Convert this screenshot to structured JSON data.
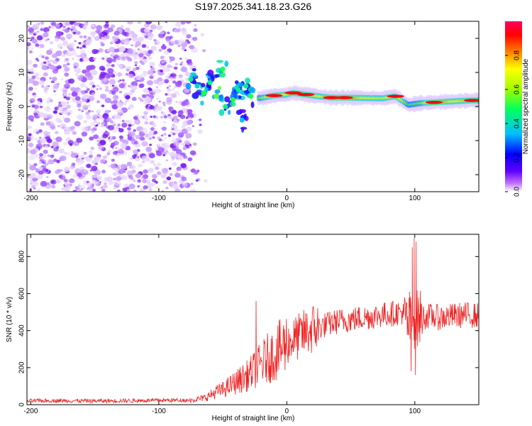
{
  "figure": {
    "title": "S197.2025.341.18.23.G26"
  },
  "chart_data": [
    {
      "type": "heatmap",
      "title": "S197.2025.341.18.23.G26",
      "xlabel": "Height of straight line (km)",
      "ylabel": "Frequency (Hz)",
      "xlim": [
        -203,
        150
      ],
      "ylim": [
        -25,
        25
      ],
      "x_ticks": [
        "-200",
        "-100",
        "0",
        "100"
      ],
      "y_ticks": [
        "-20",
        "-10",
        "0",
        "10",
        "20"
      ],
      "colorbar": {
        "label": "Normalized spectral amplitude",
        "range": [
          0.0,
          1.0
        ],
        "ticks": [
          "0.0",
          "0.2",
          "0.4",
          "0.6",
          "0.8"
        ],
        "colors": [
          "#ffffff",
          "#c070ff",
          "#6000ff",
          "#0000ff",
          "#00c0ff",
          "#00ff60",
          "#a0ff00",
          "#ffff00",
          "#ff8000",
          "#ff0000",
          "#ff0060"
        ]
      },
      "description_series": [
        {
          "name": "noise region",
          "x_range": [
            -203,
            -75
          ],
          "freq_range": [
            -25,
            25
          ],
          "amplitude": 0.1
        },
        {
          "name": "transition blobs",
          "points": [
            {
              "x": -75,
              "f": 8,
              "a": 0.3
            },
            {
              "x": -70,
              "f": 6,
              "a": 0.25
            },
            {
              "x": -65,
              "f": 4,
              "a": 0.35
            },
            {
              "x": -60,
              "f": 7,
              "a": 0.3
            },
            {
              "x": -55,
              "f": 3,
              "a": 0.4
            },
            {
              "x": -50,
              "f": 11,
              "a": 0.35
            },
            {
              "x": -48,
              "f": 0,
              "a": 0.3
            },
            {
              "x": -42,
              "f": 2,
              "a": 0.35
            },
            {
              "x": -38,
              "f": 5,
              "a": 0.3
            },
            {
              "x": -35,
              "f": -4,
              "a": 0.2
            },
            {
              "x": -32,
              "f": 6,
              "a": 0.3
            },
            {
              "x": -28,
              "f": 3,
              "a": 0.35
            }
          ]
        },
        {
          "name": "carrier band",
          "points": [
            {
              "x": -20,
              "f": 2.5,
              "a": 0.55
            },
            {
              "x": -10,
              "f": 3.2,
              "a": 0.8
            },
            {
              "x": 0,
              "f": 3.5,
              "a": 0.7
            },
            {
              "x": 5,
              "f": 4.0,
              "a": 0.85
            },
            {
              "x": 15,
              "f": 3.5,
              "a": 0.8
            },
            {
              "x": 25,
              "f": 3.0,
              "a": 0.7
            },
            {
              "x": 35,
              "f": 2.6,
              "a": 0.85
            },
            {
              "x": 45,
              "f": 2.6,
              "a": 0.9
            },
            {
              "x": 60,
              "f": 2.5,
              "a": 0.7
            },
            {
              "x": 75,
              "f": 2.4,
              "a": 0.65
            },
            {
              "x": 85,
              "f": 3.0,
              "a": 0.8
            },
            {
              "x": 95,
              "f": 0.5,
              "a": 0.5
            },
            {
              "x": 105,
              "f": 1.0,
              "a": 0.55
            },
            {
              "x": 115,
              "f": 1.2,
              "a": 0.9
            },
            {
              "x": 130,
              "f": 1.5,
              "a": 0.7
            },
            {
              "x": 145,
              "f": 1.8,
              "a": 0.8
            }
          ]
        }
      ]
    },
    {
      "type": "line",
      "xlabel": "Height of straight line (km)",
      "ylabel": "SNR (10 * v/v)",
      "xlim": [
        -203,
        150
      ],
      "ylim": [
        0,
        920
      ],
      "x_ticks": [
        "-200",
        "-100",
        "0",
        "100"
      ],
      "y_ticks": [
        "0",
        "200",
        "400",
        "600",
        "800"
      ],
      "series": [
        {
          "name": "SNR",
          "color": "#ee2222",
          "x": [
            -203,
            -180,
            -150,
            -120,
            -90,
            -75,
            -65,
            -60,
            -55,
            -50,
            -45,
            -40,
            -35,
            -30,
            -25,
            -20,
            -15,
            -10,
            -5,
            0,
            5,
            10,
            15,
            20,
            25,
            30,
            40,
            50,
            60,
            70,
            80,
            90,
            95,
            100,
            105,
            110,
            120,
            130,
            140,
            150
          ],
          "y": [
            20,
            22,
            20,
            22,
            24,
            25,
            35,
            50,
            70,
            80,
            100,
            120,
            140,
            160,
            190,
            220,
            250,
            270,
            300,
            330,
            350,
            370,
            390,
            410,
            420,
            430,
            450,
            460,
            470,
            480,
            490,
            500,
            430,
            460,
            470,
            480,
            470,
            480,
            485,
            480
          ],
          "spikes": [
            {
              "x": -24,
              "y": 560
            },
            {
              "x": 96,
              "y": 610
            },
            {
              "x": 98,
              "y": 850
            },
            {
              "x": 99.5,
              "y": 900
            },
            {
              "x": 101,
              "y": 880
            },
            {
              "x": 97,
              "y": 180
            },
            {
              "x": 100.5,
              "y": 160
            }
          ]
        }
      ]
    }
  ]
}
